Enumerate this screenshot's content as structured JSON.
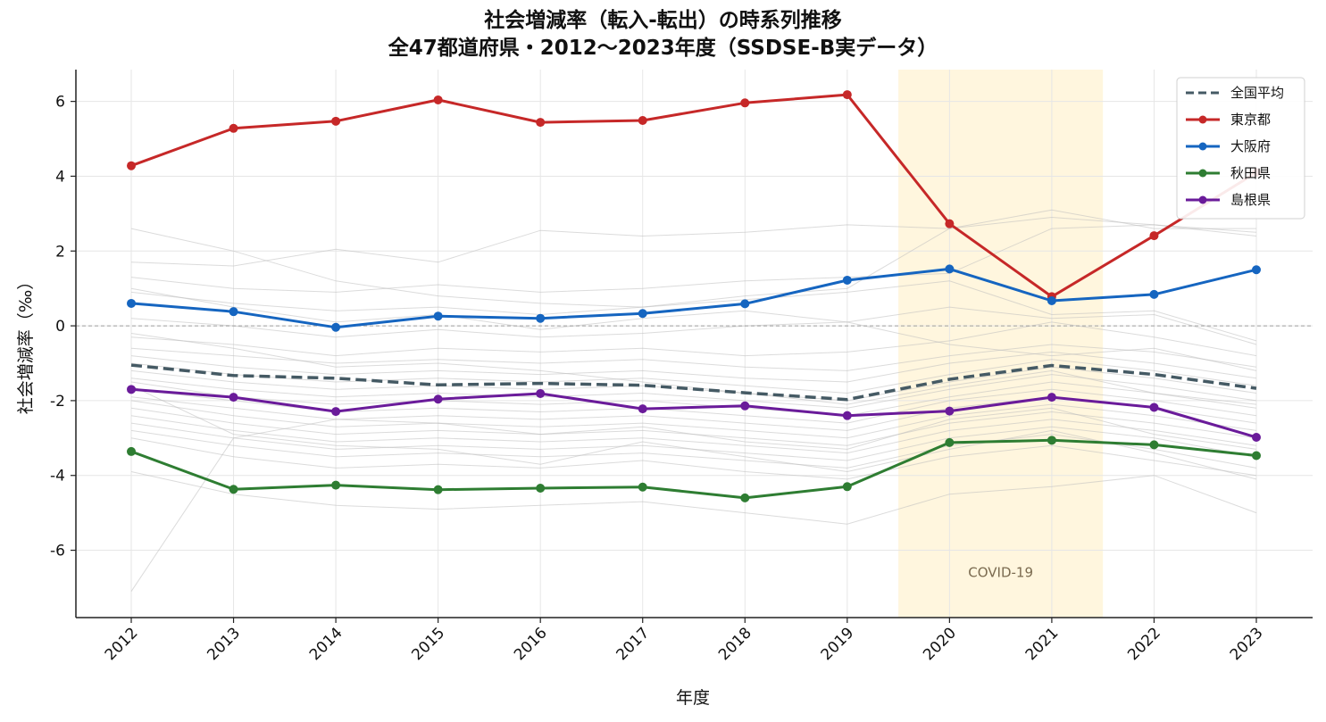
{
  "chart_data": {
    "type": "line",
    "title": "社会増減率（転入-転出）の時系列推移",
    "subtitle": "全47都道府県・2012〜2023年度（SSDSE-B実データ）",
    "xlabel": "年度",
    "ylabel": "社会増減率（‰）",
    "x": [
      2012,
      2013,
      2014,
      2015,
      2016,
      2017,
      2018,
      2019,
      2020,
      2021,
      2022,
      2023
    ],
    "ylim": [
      -7.8,
      6.85
    ],
    "yticks": [
      -6,
      -4,
      -2,
      0,
      2,
      4,
      6
    ],
    "grid": true,
    "legend_position": "top-right",
    "zero_line": true,
    "highlight_band": {
      "x_start": 2019.5,
      "x_end": 2021.5,
      "label": "COVID-19",
      "color": "#fff6de"
    },
    "series": [
      {
        "name": "全国平均",
        "style": "dashed",
        "color": "#455a64",
        "values": [
          -1.05,
          -1.33,
          -1.4,
          -1.58,
          -1.54,
          -1.59,
          -1.79,
          -1.97,
          -1.43,
          -1.06,
          -1.3,
          -1.67
        ]
      },
      {
        "name": "東京都",
        "style": "solid-marker",
        "color": "#c62828",
        "values": [
          4.28,
          5.28,
          5.47,
          6.04,
          5.44,
          5.49,
          5.96,
          6.18,
          2.73,
          0.78,
          2.41,
          4.1
        ]
      },
      {
        "name": "大阪府",
        "style": "solid-marker",
        "color": "#1565c0",
        "values": [
          0.6,
          0.38,
          -0.04,
          0.26,
          0.2,
          0.33,
          0.59,
          1.22,
          1.52,
          0.67,
          0.84,
          1.5
        ]
      },
      {
        "name": "秋田県",
        "style": "solid-marker",
        "color": "#2e7d32",
        "values": [
          -3.36,
          -4.37,
          -4.26,
          -4.38,
          -4.34,
          -4.31,
          -4.6,
          -4.3,
          -3.12,
          -3.06,
          -3.18,
          -3.47
        ]
      },
      {
        "name": "島根県",
        "style": "solid-marker",
        "color": "#6a1b9a",
        "values": [
          -1.7,
          -1.91,
          -2.29,
          -1.96,
          -1.81,
          -2.22,
          -2.14,
          -2.4,
          -2.28,
          -1.91,
          -2.18,
          -2.98
        ]
      }
    ],
    "background_series": {
      "color": "#bdbdbd",
      "lines": [
        [
          2.6,
          2.0,
          1.2,
          0.8,
          0.6,
          0.5,
          0.8,
          1.0,
          2.6,
          3.1,
          2.6,
          2.6
        ],
        [
          1.7,
          1.6,
          2.05,
          1.7,
          2.55,
          2.4,
          2.5,
          2.7,
          2.6,
          2.9,
          2.7,
          2.5
        ],
        [
          1.3,
          1.0,
          0.9,
          1.1,
          0.9,
          1.0,
          1.2,
          1.3,
          1.4,
          2.6,
          2.7,
          2.4
        ],
        [
          0.9,
          0.6,
          0.4,
          0.5,
          0.3,
          0.5,
          0.7,
          0.9,
          1.2,
          0.3,
          0.4,
          -0.4
        ],
        [
          0.2,
          0.0,
          -0.3,
          -0.1,
          -0.3,
          -0.2,
          0.0,
          0.1,
          0.5,
          0.2,
          0.3,
          -0.5
        ],
        [
          -0.3,
          -0.5,
          -0.8,
          -0.6,
          -0.7,
          -0.6,
          -0.8,
          -0.7,
          -0.4,
          0.1,
          -0.3,
          -0.8
        ],
        [
          -0.6,
          -0.8,
          -1.0,
          -0.9,
          -1.0,
          -0.9,
          -1.1,
          -1.2,
          -0.8,
          -0.5,
          -0.7,
          -1.1
        ],
        [
          -0.8,
          -1.1,
          -1.3,
          -1.2,
          -1.3,
          -1.2,
          -1.4,
          -1.5,
          -1.0,
          -0.7,
          -1.0,
          -1.4
        ],
        [
          -1.0,
          -1.3,
          -1.5,
          -1.4,
          -1.5,
          -1.4,
          -1.6,
          -1.8,
          -1.3,
          -0.9,
          -1.2,
          -1.6
        ],
        [
          -1.2,
          -1.5,
          -1.7,
          -1.6,
          -1.7,
          -1.6,
          -1.8,
          -2.0,
          -1.5,
          -1.1,
          -1.4,
          -1.8
        ],
        [
          -1.4,
          -1.7,
          -1.9,
          -1.8,
          -1.9,
          -1.8,
          -2.0,
          -2.2,
          -1.7,
          -1.3,
          -1.6,
          -2.0
        ],
        [
          -1.5,
          -1.9,
          -2.1,
          -2.0,
          -2.1,
          -2.0,
          -2.2,
          -2.4,
          -1.9,
          -1.5,
          -1.8,
          -2.2
        ],
        [
          -1.7,
          -2.0,
          -2.3,
          -2.2,
          -2.3,
          -2.2,
          -2.4,
          -2.6,
          -2.0,
          -1.7,
          -2.0,
          -2.4
        ],
        [
          -1.9,
          -2.2,
          -2.5,
          -2.4,
          -2.5,
          -2.4,
          -2.6,
          -2.8,
          -2.2,
          -1.9,
          -2.2,
          -2.6
        ],
        [
          -2.0,
          -2.4,
          -2.7,
          -2.6,
          -2.7,
          -2.6,
          -2.8,
          -3.0,
          -2.4,
          -2.1,
          -2.4,
          -2.8
        ],
        [
          -2.2,
          -2.6,
          -2.9,
          -2.8,
          -2.9,
          -2.8,
          -3.0,
          -3.2,
          -2.6,
          -2.3,
          -2.6,
          -3.0
        ],
        [
          -2.4,
          -2.8,
          -3.1,
          -3.0,
          -3.1,
          -3.0,
          -3.2,
          -3.4,
          -2.8,
          -2.5,
          -2.8,
          -3.2
        ],
        [
          -2.6,
          -3.0,
          -3.3,
          -3.2,
          -3.3,
          -3.2,
          -3.4,
          -3.6,
          -3.0,
          -2.7,
          -3.0,
          -3.5
        ],
        [
          -2.8,
          -3.2,
          -3.5,
          -3.4,
          -3.5,
          -3.4,
          -3.6,
          -3.8,
          -3.2,
          -2.9,
          -3.3,
          -3.8
        ],
        [
          -3.0,
          -3.5,
          -3.8,
          -3.7,
          -3.8,
          -3.6,
          -3.9,
          -4.1,
          -3.5,
          -3.2,
          -3.6,
          -4.0
        ],
        [
          -3.9,
          -4.5,
          -4.8,
          -4.9,
          -4.8,
          -4.7,
          -5.0,
          -5.3,
          -4.5,
          -4.3,
          -4.0,
          -5.0
        ],
        [
          -7.1,
          -3.0,
          -2.5,
          -2.6,
          -2.9,
          -2.7,
          -3.1,
          -3.3,
          -2.5,
          -2.2,
          -2.9,
          -3.3
        ],
        [
          1.0,
          0.5,
          0.1,
          0.3,
          -0.1,
          0.2,
          0.4,
          0.1,
          -0.5,
          -0.8,
          -0.6,
          -1.2
        ],
        [
          -0.2,
          -0.6,
          -1.1,
          -1.0,
          -1.2,
          -1.5,
          -1.8,
          -2.1,
          -1.6,
          -1.2,
          -1.8,
          -2.1
        ],
        [
          -1.6,
          -2.9,
          -3.2,
          -3.3,
          -3.7,
          -3.1,
          -3.5,
          -3.9,
          -3.3,
          -2.8,
          -3.4,
          -4.1
        ]
      ]
    }
  }
}
